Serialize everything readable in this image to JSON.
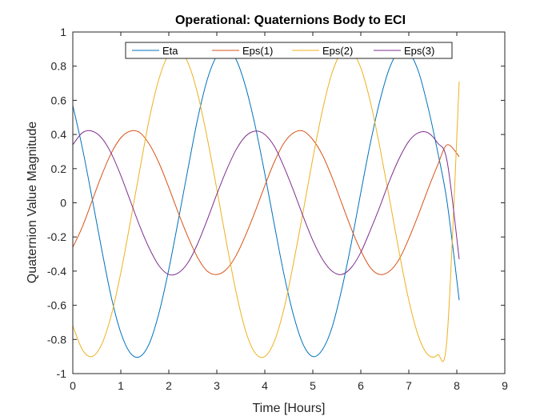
{
  "chart_data": {
    "type": "line",
    "title": "Operational: Quaternions Body to ECI",
    "xlabel": "Time [Hours]",
    "ylabel": "Quaternion Value Magnitude",
    "xlim": [
      0,
      9
    ],
    "ylim": [
      -1,
      1
    ],
    "xticks": [
      "0",
      "1",
      "2",
      "3",
      "4",
      "5",
      "6",
      "7",
      "8",
      "9"
    ],
    "yticks": [
      "-1",
      "-0.8",
      "-0.6",
      "-0.4",
      "-0.2",
      "0",
      "0.2",
      "0.4",
      "0.6",
      "0.8",
      "1"
    ],
    "grid": false,
    "legend_position": "top",
    "legend_orientation": "horizontal",
    "series": [
      {
        "name": "Eta",
        "color": "#0072BD",
        "x": [
          0,
          0.2,
          0.4,
          0.6,
          0.8,
          1.0,
          1.2,
          1.4,
          1.6,
          1.8,
          2.0,
          2.2,
          2.4,
          2.6,
          2.8,
          3.0,
          3.2,
          3.4,
          3.6,
          3.8,
          4.0,
          4.2,
          4.4,
          4.6,
          4.8,
          5.0,
          5.2,
          5.4,
          5.6,
          5.8,
          6.0,
          6.2,
          6.4,
          6.6,
          6.8,
          7.0,
          7.2,
          7.4,
          7.6,
          7.8,
          8.05
        ],
        "y": [
          0.57,
          0.32,
          0.03,
          -0.27,
          -0.55,
          -0.76,
          -0.88,
          -0.9,
          -0.82,
          -0.64,
          -0.39,
          -0.1,
          0.2,
          0.49,
          0.72,
          0.86,
          0.9,
          0.84,
          0.68,
          0.45,
          0.17,
          -0.13,
          -0.42,
          -0.66,
          -0.83,
          -0.9,
          -0.86,
          -0.73,
          -0.51,
          -0.24,
          0.06,
          0.35,
          0.6,
          0.79,
          0.89,
          0.88,
          0.77,
          0.56,
          0.3,
          0.0,
          -0.57
        ]
      },
      {
        "name": "Eps(1)",
        "color": "#D95319",
        "x": [
          0,
          0.2,
          0.4,
          0.6,
          0.8,
          1.0,
          1.2,
          1.4,
          1.6,
          1.8,
          2.0,
          2.2,
          2.4,
          2.6,
          2.8,
          3.0,
          3.2,
          3.4,
          3.6,
          3.8,
          4.0,
          4.2,
          4.4,
          4.6,
          4.8,
          5.0,
          5.2,
          5.4,
          5.6,
          5.8,
          6.0,
          6.2,
          6.4,
          6.6,
          6.8,
          7.0,
          7.2,
          7.4,
          7.6,
          7.8,
          8.05
        ],
        "y": [
          -0.26,
          -0.14,
          0.01,
          0.16,
          0.29,
          0.38,
          0.42,
          0.41,
          0.34,
          0.23,
          0.09,
          -0.06,
          -0.2,
          -0.32,
          -0.4,
          -0.42,
          -0.39,
          -0.31,
          -0.19,
          -0.05,
          0.1,
          0.24,
          0.35,
          0.41,
          0.42,
          0.37,
          0.28,
          0.15,
          0.0,
          -0.15,
          -0.28,
          -0.38,
          -0.42,
          -0.4,
          -0.33,
          -0.21,
          -0.07,
          0.08,
          0.22,
          0.34,
          0.27
        ]
      },
      {
        "name": "Eps(2)",
        "color": "#EDB120",
        "x": [
          0,
          0.2,
          0.4,
          0.6,
          0.8,
          1.0,
          1.2,
          1.4,
          1.6,
          1.8,
          2.0,
          2.2,
          2.4,
          2.6,
          2.8,
          3.0,
          3.2,
          3.4,
          3.6,
          3.8,
          4.0,
          4.2,
          4.4,
          4.6,
          4.8,
          5.0,
          5.2,
          5.4,
          5.6,
          5.8,
          6.0,
          6.2,
          6.4,
          6.6,
          6.8,
          7.0,
          7.2,
          7.4,
          7.6,
          7.8,
          8.05
        ],
        "y": [
          -0.72,
          -0.86,
          -0.9,
          -0.83,
          -0.66,
          -0.41,
          -0.11,
          0.2,
          0.5,
          0.73,
          0.87,
          0.9,
          0.82,
          0.64,
          0.38,
          0.08,
          -0.23,
          -0.52,
          -0.75,
          -0.88,
          -0.9,
          -0.81,
          -0.62,
          -0.35,
          -0.05,
          0.26,
          0.54,
          0.76,
          0.88,
          0.89,
          0.79,
          0.59,
          0.32,
          0.02,
          -0.29,
          -0.57,
          -0.78,
          -0.89,
          -0.89,
          -0.78,
          0.71
        ]
      },
      {
        "name": "Eps(3)",
        "color": "#7E2F8E",
        "x": [
          0,
          0.2,
          0.4,
          0.6,
          0.8,
          1.0,
          1.2,
          1.4,
          1.6,
          1.8,
          2.0,
          2.2,
          2.4,
          2.6,
          2.8,
          3.0,
          3.2,
          3.4,
          3.6,
          3.8,
          4.0,
          4.2,
          4.4,
          4.6,
          4.8,
          5.0,
          5.2,
          5.4,
          5.6,
          5.8,
          6.0,
          6.2,
          6.4,
          6.6,
          6.8,
          7.0,
          7.2,
          7.4,
          7.6,
          7.8,
          8.05
        ],
        "y": [
          0.34,
          0.41,
          0.42,
          0.38,
          0.29,
          0.16,
          0.01,
          -0.14,
          -0.27,
          -0.37,
          -0.42,
          -0.41,
          -0.35,
          -0.24,
          -0.1,
          0.05,
          0.19,
          0.31,
          0.39,
          0.42,
          0.4,
          0.33,
          0.21,
          0.07,
          -0.08,
          -0.22,
          -0.33,
          -0.4,
          -0.42,
          -0.38,
          -0.29,
          -0.16,
          -0.02,
          0.13,
          0.26,
          0.36,
          0.41,
          0.41,
          0.35,
          0.24,
          -0.33
        ]
      }
    ]
  }
}
